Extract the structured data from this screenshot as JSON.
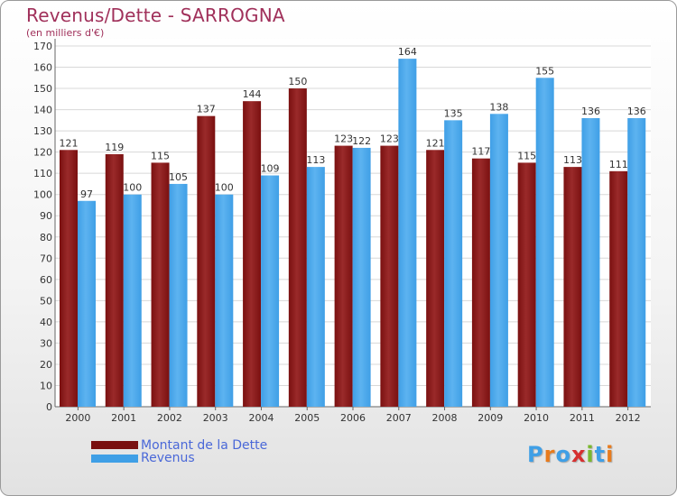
{
  "chart_data": {
    "type": "bar",
    "title": "Revenus/Dette - SARROGNA",
    "subtitle": "(en milliers d'€)",
    "categories": [
      "2000",
      "2001",
      "2002",
      "2003",
      "2004",
      "2005",
      "2006",
      "2007",
      "2008",
      "2009",
      "2010",
      "2011",
      "2012"
    ],
    "series": [
      {
        "name": "Montant de la Dette",
        "color": "#7a1010",
        "values": [
          121,
          119,
          115,
          137,
          144,
          150,
          123,
          123,
          121,
          117,
          115,
          113,
          111
        ]
      },
      {
        "name": "Revenus",
        "color": "#3f9fe6",
        "values": [
          97,
          100,
          105,
          100,
          109,
          113,
          122,
          164,
          135,
          138,
          155,
          136,
          136
        ]
      }
    ],
    "ylim": [
      0,
      170
    ],
    "yticks": [
      0,
      10,
      20,
      30,
      40,
      50,
      60,
      70,
      80,
      90,
      100,
      110,
      120,
      130,
      140,
      150,
      160,
      170
    ],
    "grid": true,
    "legend_position": "bottom-left"
  },
  "logo": {
    "text": "Proxiti",
    "colors": [
      "#3f9fe6",
      "#e87b1c",
      "#3f9fe6",
      "#d62f2f",
      "#7ab82e",
      "#3f9fe6",
      "#e87b1c"
    ]
  }
}
